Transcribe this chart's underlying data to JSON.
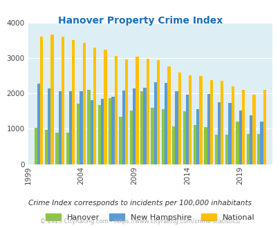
{
  "title": "Hanover Property Crime Index",
  "title_color": "#1a6fba",
  "background_color": "#deeef5",
  "years": [
    2000,
    2001,
    2002,
    2003,
    2004,
    2005,
    2006,
    2007,
    2008,
    2009,
    2010,
    2011,
    2012,
    2013,
    2014,
    2015,
    2016,
    2017,
    2018,
    2019,
    2020,
    2021
  ],
  "hanover": [
    1030,
    970,
    900,
    900,
    1710,
    2100,
    1670,
    1870,
    1340,
    1520,
    2060,
    1590,
    1550,
    1060,
    1500,
    1110,
    1040,
    830,
    830,
    1210,
    850,
    850
  ],
  "new_hampshire": [
    2270,
    2150,
    2060,
    2060,
    2060,
    1820,
    1850,
    1910,
    2090,
    2140,
    2170,
    2310,
    2300,
    2060,
    1970,
    1550,
    1990,
    1760,
    1740,
    1510,
    1390,
    1210
  ],
  "national": [
    3610,
    3660,
    3610,
    3510,
    3440,
    3300,
    3240,
    3060,
    2960,
    3050,
    2990,
    2940,
    2760,
    2600,
    2510,
    2490,
    2380,
    2360,
    2210,
    2100,
    1960,
    2100
  ],
  "hanover_color": "#8dc63f",
  "nh_color": "#5b9bd5",
  "national_color": "#ffc000",
  "ylim": [
    0,
    4000
  ],
  "yticks": [
    0,
    1000,
    2000,
    3000,
    4000
  ],
  "xtick_years": [
    1999,
    2004,
    2009,
    2014,
    2019
  ],
  "footnote1": "Crime Index corresponds to incidents per 100,000 inhabitants",
  "footnote2": "© 2025 CityRating.com - https://www.cityrating.com/crime-statistics/",
  "footnote1_color": "#333333",
  "footnote2_color": "#aaaaaa",
  "legend_labels": [
    "Hanover",
    "New Hampshire",
    "National"
  ]
}
